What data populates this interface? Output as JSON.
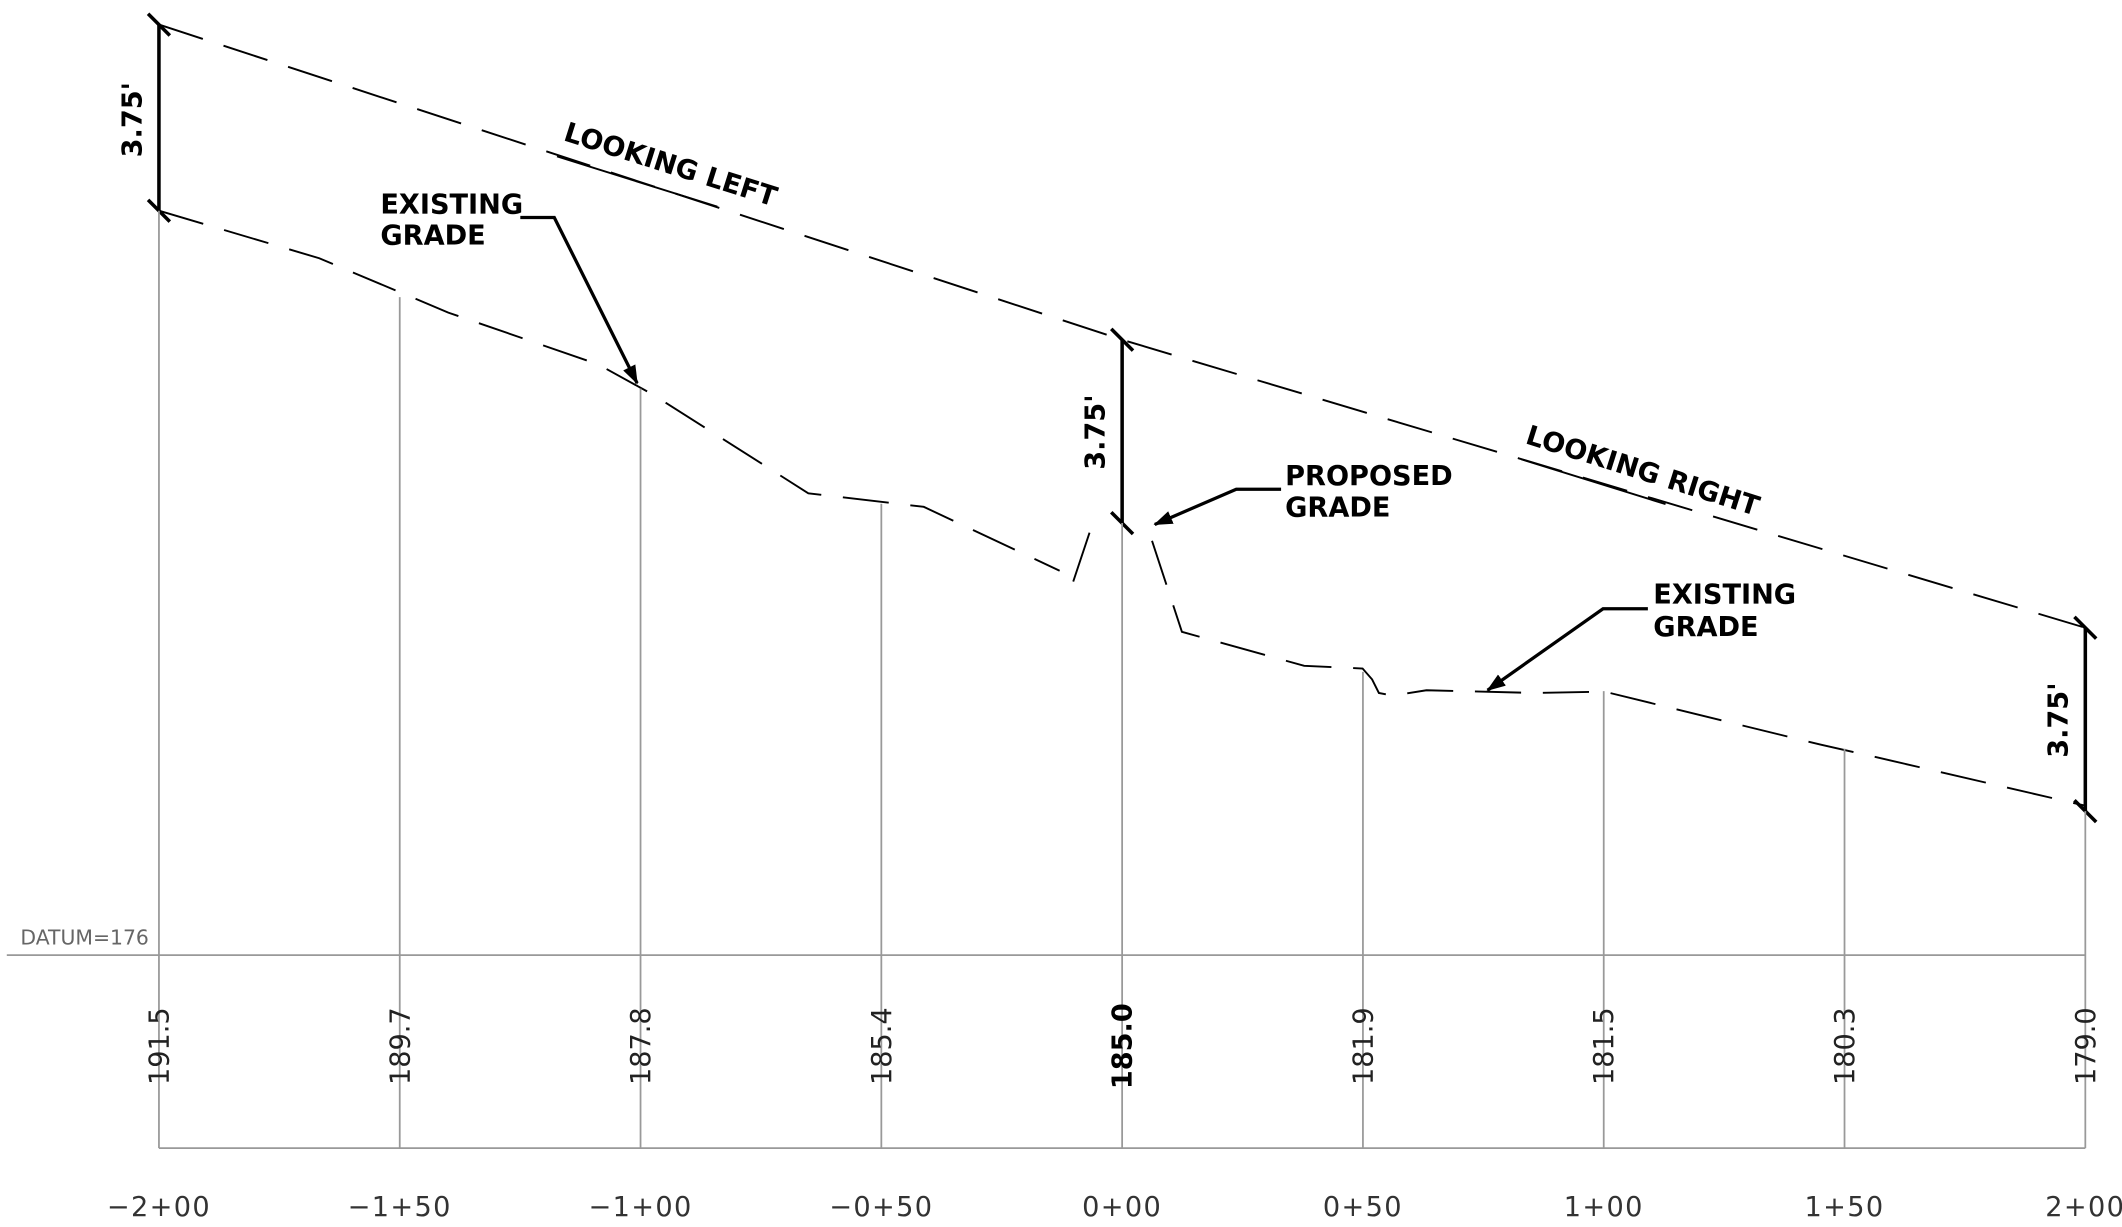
{
  "datum": "DATUM=176",
  "elevations": [
    "191.5",
    "189.7",
    "187.8",
    "185.4",
    "185.0",
    "181.9",
    "181.5",
    "180.3",
    "179.0"
  ],
  "stations": [
    "−2+00",
    "−1+50",
    "−1+00",
    "−0+50",
    "0+00",
    "0+50",
    "1+00",
    "1+50",
    "2+00"
  ],
  "dimensions": [
    "3.75'",
    "3.75'",
    "3.75'"
  ],
  "annotations": {
    "looking_left": "LOOKING LEFT",
    "looking_right": "LOOKING RIGHT",
    "existing_grade_left": [
      "EXISTING",
      "GRADE"
    ],
    "proposed_grade": [
      "PROPOSED",
      "GRADE"
    ],
    "existing_grade_right": [
      "EXISTING",
      "GRADE"
    ]
  }
}
